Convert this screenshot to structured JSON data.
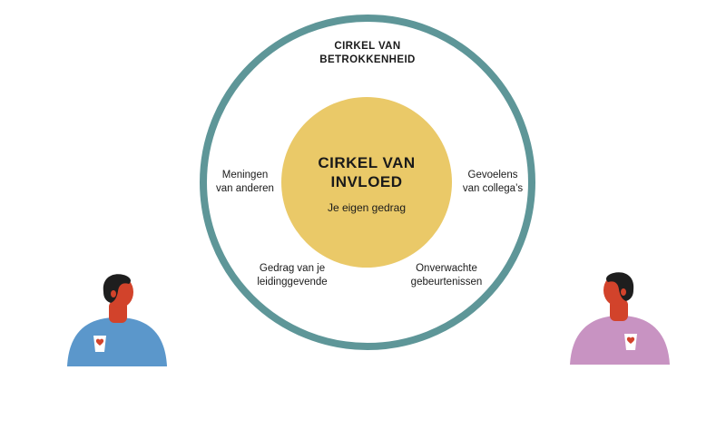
{
  "outer": {
    "title": "CIRKEL VAN\nBETROKKENHEID",
    "color": "#5E9698"
  },
  "inner": {
    "title": "CIRKEL VAN\nINVLOED",
    "subtitle": "Je eigen gedrag",
    "color": "#EAC968"
  },
  "labels": {
    "left": "Meningen\nvan anderen",
    "right": "Gevoelens\nvan collega’s",
    "bottom_left": "Gedrag van je\nleidinggevende",
    "bottom_right": "Onverwachte\ngebeurtenissen"
  },
  "people": {
    "left": {
      "shirt_color": "#5B97CB"
    },
    "right": {
      "shirt_color": "#C893C2"
    },
    "skin_color": "#D2432B",
    "hair_color": "#1E1E1E",
    "heart_color": "#D2432B"
  }
}
